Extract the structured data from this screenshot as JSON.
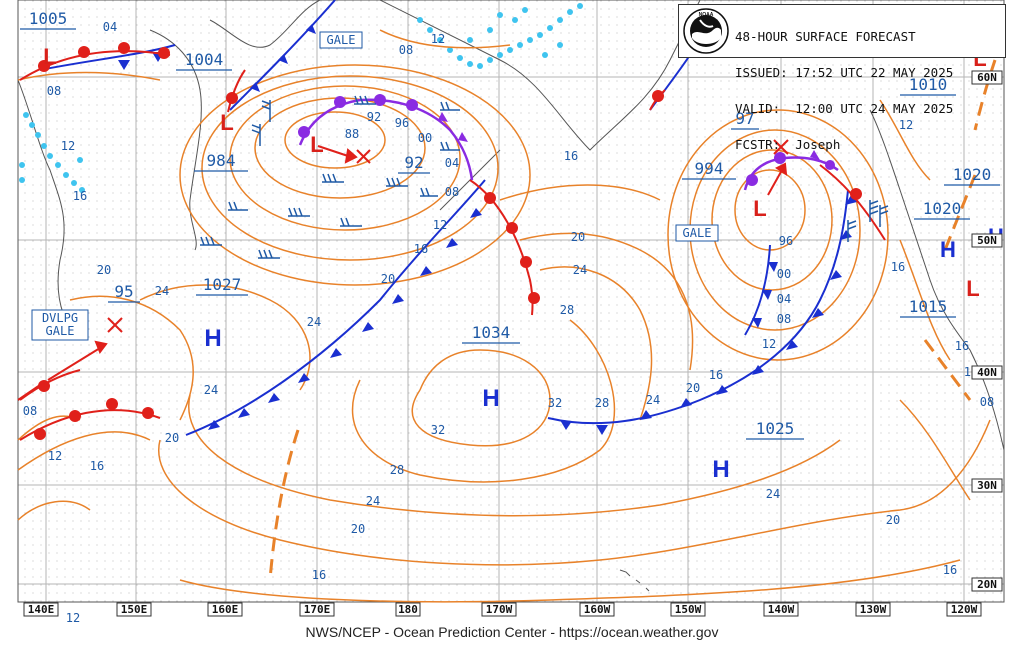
{
  "header": {
    "title": "48-HOUR SURFACE FORECAST",
    "issued": "ISSUED: 17:52 UTC 22 MAY 2025",
    "valid": "VALID:  12:00 UTC 24 MAY 2025",
    "forecaster": "FCSTR:  Joseph",
    "logo_text": "NOAA"
  },
  "footer": "NWS/NCEP - Ocean Prediction Center - https://ocean.weather.gov",
  "colors": {
    "isobar": "#e8822a",
    "isobar_label": "#1f5aa6",
    "high": "#1a2fd0",
    "low": "#d8201a",
    "cold_front": "#1a2fd0",
    "warm_front": "#e0201a",
    "occluded_front": "#8a2be2",
    "ice": "#3fc4ef",
    "grid": "#b8b8b8"
  },
  "lon_labels": [
    "140E",
    "150E",
    "160E",
    "170E",
    "180",
    "170W",
    "160W",
    "150W",
    "140W",
    "130W",
    "120W"
  ],
  "lat_labels": [
    "60N",
    "50N",
    "40N",
    "30N",
    "20N"
  ],
  "pressure_centers": [
    {
      "type": "H",
      "value": "1027"
    },
    {
      "type": "H",
      "value": "1034"
    },
    {
      "type": "H",
      "value": "1025"
    },
    {
      "type": "H",
      "value": "1020"
    },
    {
      "type": "H",
      "value": ""
    },
    {
      "type": "L",
      "value": "984"
    },
    {
      "type": "L",
      "value": "92"
    },
    {
      "type": "L",
      "value": "994"
    },
    {
      "type": "L",
      "value": "97"
    },
    {
      "type": "L",
      "value": "1004"
    },
    {
      "type": "L",
      "value": "1005"
    },
    {
      "type": "L",
      "value": "95"
    },
    {
      "type": "L",
      "value": "1010"
    },
    {
      "type": "L",
      "value": "1015"
    }
  ],
  "isobar_labels": [
    "04",
    "08",
    "12",
    "16",
    "20",
    "24",
    "28",
    "32",
    "88",
    "92",
    "96",
    "00"
  ],
  "warnings": [
    "GALE",
    "GALE",
    "DVLPG",
    "GALE"
  ]
}
